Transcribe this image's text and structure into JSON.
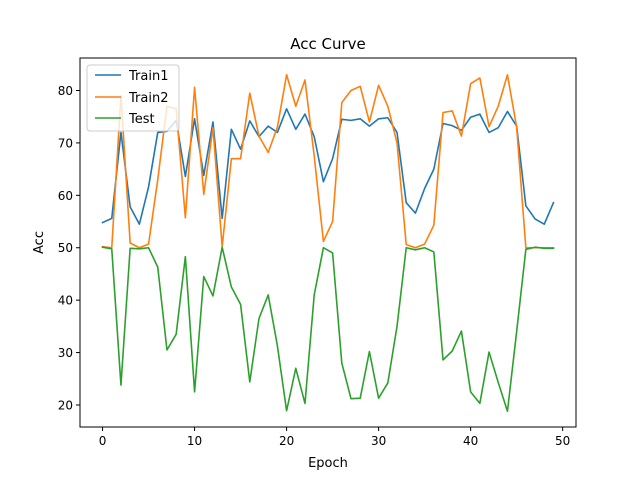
{
  "chart_data": {
    "type": "line",
    "title": "Acc Curve",
    "xlabel": "Epoch",
    "ylabel": "Acc",
    "xlim": [
      -2.45,
      51.45
    ],
    "ylim": [
      15.8,
      86.2
    ],
    "xticks": [
      0,
      10,
      20,
      30,
      40,
      50
    ],
    "yticks": [
      20,
      30,
      40,
      50,
      60,
      70,
      80
    ],
    "grid": false,
    "legend": "top-left",
    "x": [
      0,
      1,
      2,
      3,
      4,
      5,
      6,
      7,
      8,
      9,
      10,
      11,
      12,
      13,
      14,
      15,
      16,
      17,
      18,
      19,
      20,
      21,
      22,
      23,
      24,
      25,
      26,
      27,
      28,
      29,
      30,
      31,
      32,
      33,
      34,
      35,
      36,
      37,
      38,
      39,
      40,
      41,
      42,
      43,
      44,
      45,
      46,
      47,
      48,
      49
    ],
    "series": [
      {
        "name": "Train1",
        "color": "#1f77b4",
        "values": [
          54.8,
          55.6,
          72.0,
          57.8,
          54.5,
          61.6,
          72.0,
          72.2,
          74.3,
          63.6,
          74.6,
          63.8,
          74.0,
          55.6,
          72.6,
          68.8,
          74.2,
          71.2,
          73.2,
          72.0,
          76.5,
          72.6,
          75.5,
          71.2,
          62.6,
          67.0,
          74.5,
          74.3,
          74.6,
          73.2,
          74.6,
          74.8,
          72.0,
          58.6,
          56.6,
          61.3,
          65.0,
          73.7,
          73.3,
          72.4,
          74.9,
          75.5,
          72.0,
          72.9,
          76.0,
          73.2,
          58.0,
          55.5,
          54.5,
          58.6
        ]
      },
      {
        "name": "Train2",
        "color": "#ff7f0e",
        "values": [
          50.2,
          50.0,
          79.0,
          50.9,
          50.0,
          50.7,
          63.0,
          77.0,
          76.5,
          55.7,
          80.6,
          60.2,
          72.9,
          50.2,
          67.0,
          67.0,
          79.5,
          71.3,
          68.2,
          73.0,
          83.0,
          77.0,
          82.0,
          67.5,
          51.2,
          55.0,
          77.7,
          80.0,
          80.8,
          74.0,
          81.0,
          77.0,
          70.0,
          50.6,
          50.0,
          50.7,
          54.3,
          75.8,
          76.1,
          71.3,
          81.3,
          82.4,
          73.1,
          77.0,
          83.0,
          73.0,
          50.0,
          50.0,
          50.0,
          50.0
        ]
      },
      {
        "name": "Test",
        "color": "#2ca02c",
        "values": [
          50.1,
          49.8,
          23.8,
          49.9,
          49.8,
          50.0,
          46.3,
          30.5,
          33.5,
          48.3,
          22.5,
          44.5,
          40.8,
          50.1,
          42.5,
          39.2,
          24.4,
          36.5,
          41.0,
          31.3,
          18.9,
          27.0,
          20.3,
          41.0,
          50.0,
          49.0,
          28.0,
          21.2,
          21.3,
          30.2,
          21.3,
          24.2,
          35.0,
          50.0,
          49.6,
          50.0,
          49.2,
          28.6,
          30.3,
          34.1,
          22.5,
          20.3,
          30.1,
          24.3,
          18.8,
          34.0,
          49.7,
          50.1,
          49.9,
          49.9
        ]
      }
    ]
  }
}
